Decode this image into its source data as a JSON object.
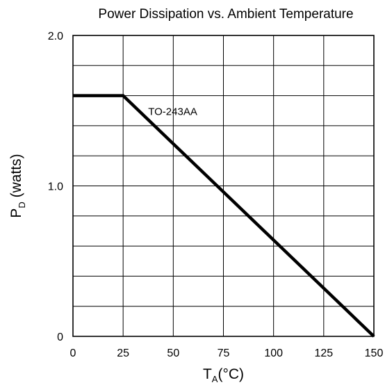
{
  "chart_data": {
    "type": "line",
    "title": "Power Dissipation vs. Ambient Temperature",
    "xlabel": {
      "main": "T",
      "sub": "A",
      "unit": "(°C)"
    },
    "ylabel": {
      "main": "P",
      "sub": "D",
      "unit": " (watts)"
    },
    "xlim": [
      0,
      150
    ],
    "ylim": [
      0,
      2.0
    ],
    "x_ticks": [
      0,
      25,
      50,
      75,
      100,
      125,
      150
    ],
    "x_tick_labels": [
      "0",
      "25",
      "50",
      "75",
      "100",
      "125",
      "150"
    ],
    "y_ticks": [
      0,
      1.0,
      2.0
    ],
    "y_tick_labels": [
      "0",
      "1.0",
      "2.0"
    ],
    "x_gridlines": [
      0,
      25,
      50,
      75,
      100,
      125,
      150
    ],
    "y_gridlines": [
      0,
      0.2,
      0.4,
      0.6,
      0.8,
      1.0,
      1.2,
      1.4,
      1.6,
      1.8,
      2.0
    ],
    "grid": true,
    "legend": "none",
    "series": [
      {
        "name": "TO-243AA",
        "x": [
          0,
          25,
          150
        ],
        "y": [
          1.6,
          1.6,
          0
        ]
      }
    ],
    "annotations": [
      {
        "text": "TO-243AA",
        "x": 37.5,
        "y": 1.5
      }
    ],
    "colors": {
      "line": "#000000",
      "grid": "#000000",
      "background": "#ffffff"
    }
  }
}
